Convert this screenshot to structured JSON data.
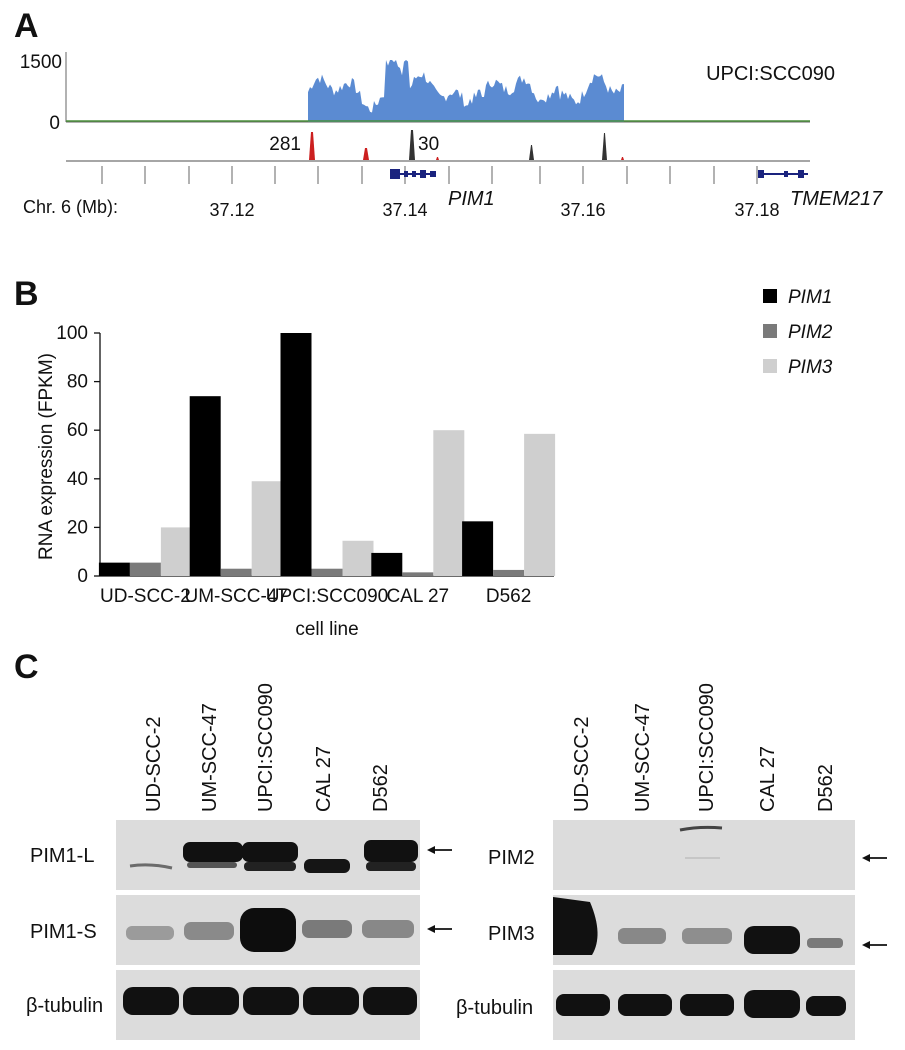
{
  "panel_a": {
    "letter": "A",
    "y_max_label": "1500",
    "y_min_label": "0",
    "sample_label": "UPCI:SCC090",
    "count_left": "281",
    "count_right": "30",
    "chrom_label": "Chr. 6 (Mb):",
    "ticks": [
      "37.12",
      "37.14",
      "37.16",
      "37.18"
    ],
    "gene1": "PIM1",
    "gene2": "TMEM217",
    "coverage_color": "#5b8bd2"
  },
  "panel_b": {
    "letter": "B",
    "legend_colors": [
      "#000000",
      "#7a7a7a",
      "#cfcfcf"
    ]
  },
  "panel_c": {
    "letter": "C",
    "lanes": [
      "UD-SCC-2",
      "UM-SCC-47",
      "UPCI:SCC090",
      "CAL 27",
      "D562"
    ],
    "left_rows": [
      "PIM1-L",
      "PIM1-S",
      "β-tubulin"
    ],
    "right_rows": [
      "PIM2",
      "PIM3",
      "β-tubulin"
    ],
    "arrow_glyph": "←"
  },
  "chart_data": {
    "type": "bar",
    "categories": [
      "UD-SCC-2",
      "UM-SCC-47",
      "UPCI:SCC090",
      "CAL 27",
      "D562"
    ],
    "series": [
      {
        "name": "PIM1",
        "values": [
          5.5,
          74,
          100,
          9.5,
          22.5
        ]
      },
      {
        "name": "PIM2",
        "values": [
          5.5,
          3,
          3,
          1.5,
          2.5
        ]
      },
      {
        "name": "PIM3",
        "values": [
          20,
          39,
          14.5,
          60,
          58.5
        ]
      }
    ],
    "xlabel": "cell line",
    "ylabel": "RNA expression (FPKM)",
    "ylim": [
      0,
      100
    ],
    "yticks": [
      0,
      20,
      40,
      60,
      80,
      100
    ],
    "grid": false,
    "legend_position": "top-right"
  }
}
